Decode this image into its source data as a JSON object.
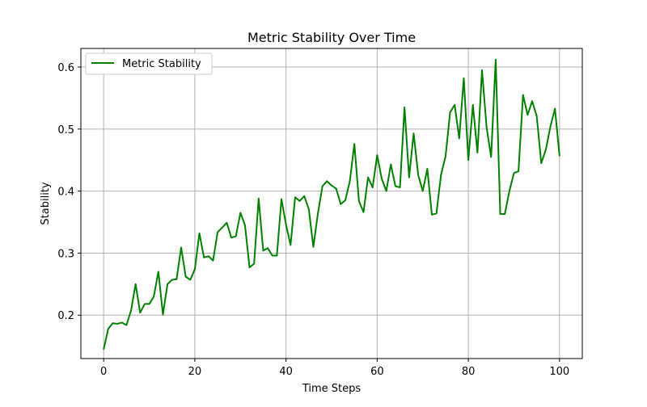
{
  "chart_data": {
    "type": "line",
    "title": "Metric Stability Over Time",
    "xlabel": "Time Steps",
    "ylabel": "Stability",
    "xlim": [
      -5,
      105
    ],
    "ylim": [
      0.13,
      0.63
    ],
    "xticks": [
      0,
      20,
      40,
      60,
      80,
      100
    ],
    "xtick_labels": [
      "0",
      "20",
      "40",
      "60",
      "80",
      "100"
    ],
    "yticks": [
      0.2,
      0.3,
      0.4,
      0.5,
      0.6
    ],
    "ytick_labels": [
      "0.2",
      "0.3",
      "0.4",
      "0.5",
      "0.6"
    ],
    "grid": true,
    "legend_position": "top-left",
    "series": [
      {
        "name": "Metric Stability",
        "color": "#008000",
        "x": [
          0,
          1,
          2,
          3,
          4,
          5,
          6,
          7,
          8,
          9,
          10,
          11,
          12,
          13,
          14,
          15,
          16,
          17,
          18,
          19,
          20,
          21,
          22,
          23,
          24,
          25,
          26,
          27,
          28,
          29,
          30,
          31,
          32,
          33,
          34,
          35,
          36,
          37,
          38,
          39,
          40,
          41,
          42,
          43,
          44,
          45,
          46,
          47,
          48,
          49,
          50,
          51,
          52,
          53,
          54,
          55,
          56,
          57,
          58,
          59,
          60,
          61,
          62,
          63,
          64,
          65,
          66,
          67,
          68,
          69,
          70,
          71,
          72,
          73,
          74,
          75,
          76,
          77,
          78,
          79,
          80,
          81,
          82,
          83,
          84,
          85,
          86,
          87,
          88,
          89,
          90,
          91,
          92,
          93,
          94,
          95,
          96,
          97,
          98,
          99,
          100
        ],
        "values": [
          0.145,
          0.178,
          0.187,
          0.186,
          0.188,
          0.184,
          0.207,
          0.25,
          0.204,
          0.218,
          0.218,
          0.23,
          0.27,
          0.201,
          0.25,
          0.257,
          0.258,
          0.309,
          0.262,
          0.257,
          0.274,
          0.332,
          0.293,
          0.295,
          0.288,
          0.334,
          0.341,
          0.349,
          0.325,
          0.327,
          0.365,
          0.345,
          0.277,
          0.283,
          0.388,
          0.304,
          0.308,
          0.296,
          0.296,
          0.387,
          0.346,
          0.313,
          0.39,
          0.384,
          0.392,
          0.371,
          0.31,
          0.364,
          0.408,
          0.416,
          0.409,
          0.404,
          0.379,
          0.385,
          0.416,
          0.476,
          0.384,
          0.366,
          0.422,
          0.406,
          0.458,
          0.42,
          0.4,
          0.443,
          0.408,
          0.406,
          0.535,
          0.422,
          0.493,
          0.426,
          0.4,
          0.436,
          0.362,
          0.364,
          0.426,
          0.456,
          0.527,
          0.539,
          0.485,
          0.582,
          0.45,
          0.539,
          0.462,
          0.595,
          0.503,
          0.455,
          0.612,
          0.363,
          0.363,
          0.4,
          0.429,
          0.432,
          0.555,
          0.523,
          0.545,
          0.521,
          0.445,
          0.467,
          0.504,
          0.533,
          0.457
        ]
      }
    ]
  }
}
